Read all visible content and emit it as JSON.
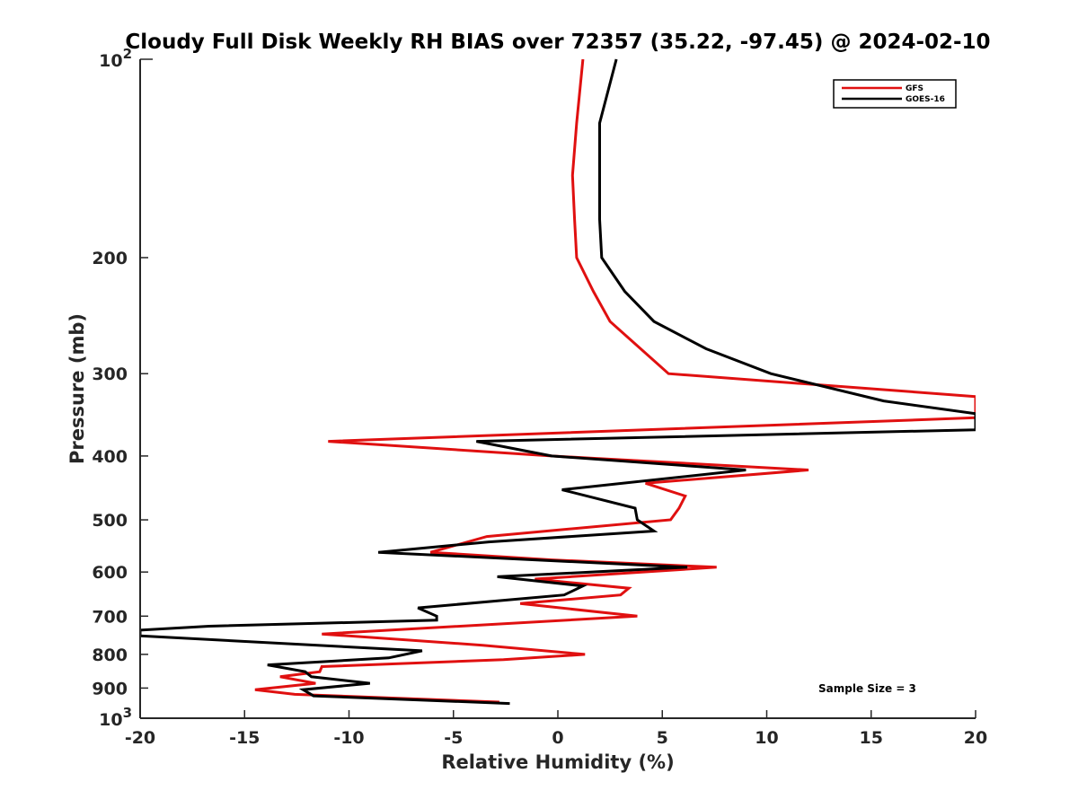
{
  "chart_data": {
    "type": "line",
    "title": "Cloudy Full Disk Weekly RH BIAS over 72357 (35.22, -97.45) @ 2024-02-10",
    "xlabel": "Relative Humidity (%)",
    "ylabel": "Pressure (mb)",
    "xlim": [
      -20,
      20
    ],
    "ylim": [
      100,
      1000
    ],
    "yscale": "log",
    "y_reversed": true,
    "grid": false,
    "legend_position": "top-right",
    "x_ticks": [
      -20,
      -15,
      -10,
      -5,
      0,
      5,
      10,
      15,
      20
    ],
    "x_tick_labels": [
      "-20",
      "-15",
      "-10",
      "-5",
      "0",
      "5",
      "10",
      "15",
      "20"
    ],
    "y_ticks": [
      200,
      300,
      400,
      500,
      600,
      700,
      800,
      900
    ],
    "y_tick_labels": [
      "200",
      "300",
      "400",
      "500",
      "600",
      "700",
      "800",
      "900"
    ],
    "y_major_labels": [
      {
        "value": 100,
        "base": "10",
        "exp": "2"
      },
      {
        "value": 1000,
        "base": "10",
        "exp": "3"
      }
    ],
    "annotation": "Sample Size = 3",
    "series": [
      {
        "name": "GFS",
        "color": "#e01010",
        "points": [
          [
            1.2,
            100
          ],
          [
            0.9,
            125
          ],
          [
            0.7,
            150
          ],
          [
            0.8,
            175
          ],
          [
            0.9,
            200
          ],
          [
            1.7,
            225
          ],
          [
            2.5,
            250
          ],
          [
            5.3,
            300
          ],
          [
            20.0,
            325
          ],
          [
            20.0,
            350
          ],
          [
            -11.0,
            380
          ],
          [
            -0.3,
            400
          ],
          [
            12.0,
            420
          ],
          [
            4.2,
            440
          ],
          [
            6.1,
            460
          ],
          [
            5.8,
            480
          ],
          [
            5.4,
            500
          ],
          [
            -3.4,
            530
          ],
          [
            -6.1,
            560
          ],
          [
            -0.3,
            575
          ],
          [
            7.6,
            590
          ],
          [
            -1.1,
            615
          ],
          [
            3.4,
            635
          ],
          [
            3.0,
            650
          ],
          [
            -1.8,
            670
          ],
          [
            3.8,
            700
          ],
          [
            -11.3,
            745
          ],
          [
            -3.6,
            775
          ],
          [
            1.3,
            800
          ],
          [
            -2.6,
            815
          ],
          [
            -11.3,
            835
          ],
          [
            -11.4,
            850
          ],
          [
            -13.3,
            865
          ],
          [
            -11.6,
            885
          ],
          [
            -14.5,
            905
          ],
          [
            -12.6,
            920
          ],
          [
            -2.8,
            945
          ]
        ]
      },
      {
        "name": "GOES-16",
        "color": "#000000",
        "points": [
          [
            2.8,
            100
          ],
          [
            2.0,
            125
          ],
          [
            2.0,
            150
          ],
          [
            2.0,
            175
          ],
          [
            2.1,
            200
          ],
          [
            3.2,
            225
          ],
          [
            4.6,
            250
          ],
          [
            7.1,
            275
          ],
          [
            10.2,
            300
          ],
          [
            15.6,
            330
          ],
          [
            20.0,
            345
          ],
          [
            20.0,
            365
          ],
          [
            -3.9,
            380
          ],
          [
            -0.3,
            400
          ],
          [
            9.0,
            420
          ],
          [
            0.2,
            450
          ],
          [
            3.7,
            480
          ],
          [
            3.8,
            500
          ],
          [
            4.6,
            520
          ],
          [
            -3.3,
            540
          ],
          [
            -8.6,
            560
          ],
          [
            6.2,
            590
          ],
          [
            -2.9,
            610
          ],
          [
            1.2,
            630
          ],
          [
            0.3,
            650
          ],
          [
            -6.7,
            680
          ],
          [
            -5.8,
            700
          ],
          [
            -5.8,
            710
          ],
          [
            -16.7,
            725
          ],
          [
            -20.0,
            735
          ],
          [
            -20.0,
            750
          ],
          [
            -6.5,
            790
          ],
          [
            -8.1,
            810
          ],
          [
            -13.9,
            830
          ],
          [
            -12.1,
            850
          ],
          [
            -11.8,
            865
          ],
          [
            -9.0,
            885
          ],
          [
            -12.2,
            905
          ],
          [
            -11.7,
            925
          ],
          [
            -2.3,
            950
          ]
        ]
      }
    ]
  }
}
